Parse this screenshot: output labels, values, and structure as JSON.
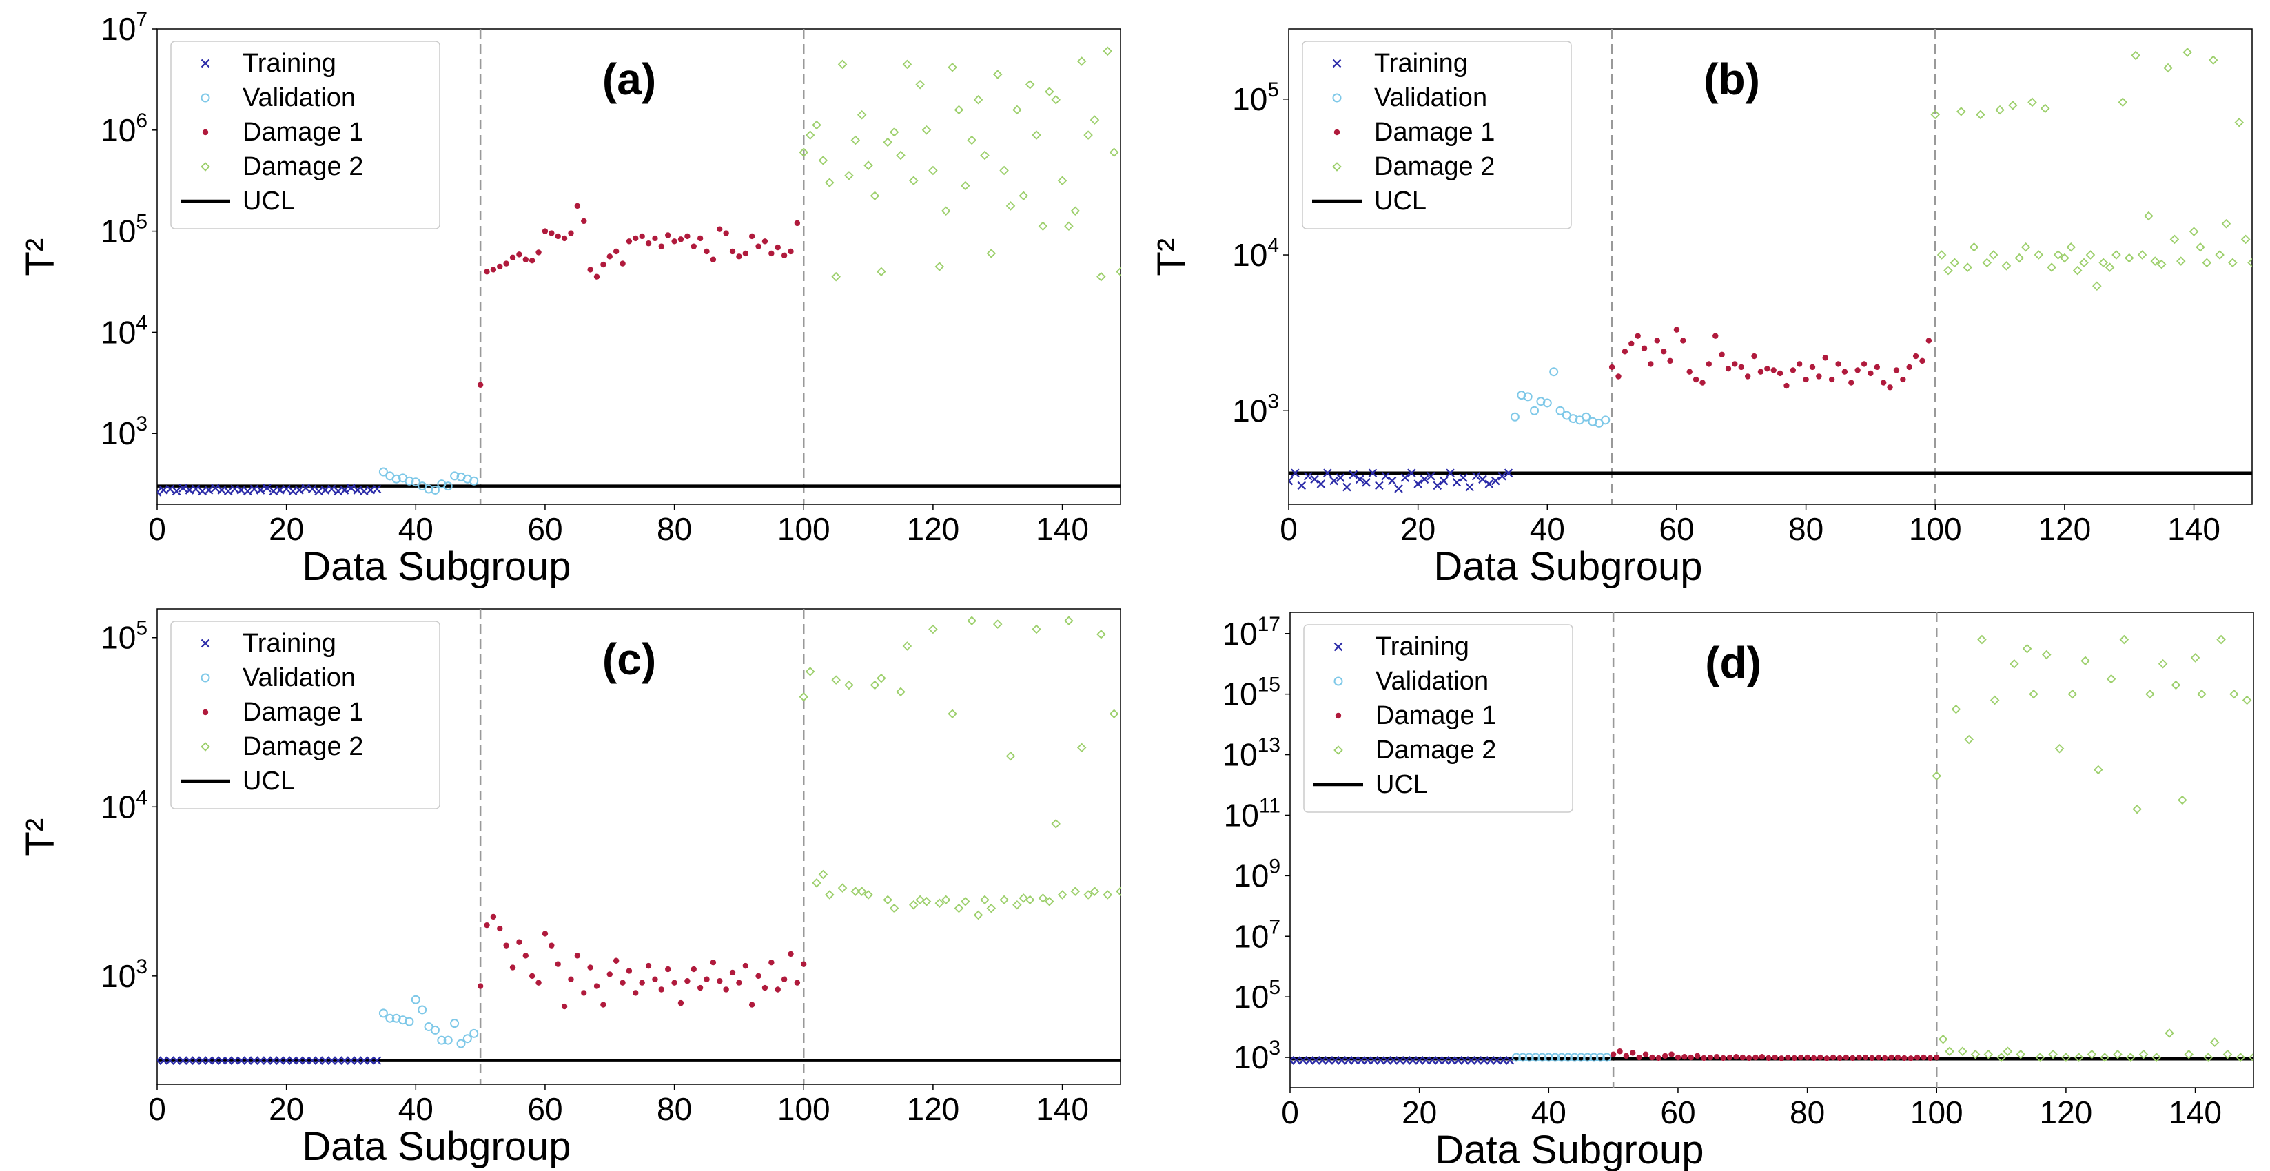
{
  "chart_data": [
    {
      "id": "a",
      "type": "scatter",
      "title": "(a)",
      "xlabel": "Data Subgroup",
      "ylabel": "T²",
      "xlim": [
        0,
        149
      ],
      "ylim_log10": [
        2.3,
        7.0
      ],
      "x_ticks": [
        0,
        20,
        40,
        60,
        80,
        100,
        120,
        140
      ],
      "y_ticks": [
        {
          "base": "10",
          "exp": "3",
          "value_log10": 3
        },
        {
          "base": "10",
          "exp": "4",
          "value_log10": 4
        },
        {
          "base": "10",
          "exp": "5",
          "value_log10": 5
        },
        {
          "base": "10",
          "exp": "6",
          "value_log10": 6
        },
        {
          "base": "10",
          "exp": "7",
          "value_log10": 7
        }
      ],
      "vlines": [
        50,
        100
      ],
      "ucl_log10": 2.48,
      "legend": [
        "Training",
        "Validation",
        "Damage 1",
        "Damage 2",
        "UCL"
      ],
      "series": [
        {
          "name": "Training",
          "marker": "x",
          "color": "#2b2ba8",
          "x_start": 0,
          "values_log10": [
            2.42,
            2.44,
            2.45,
            2.43,
            2.46,
            2.44,
            2.45,
            2.43,
            2.44,
            2.46,
            2.44,
            2.43,
            2.45,
            2.44,
            2.43,
            2.45,
            2.44,
            2.46,
            2.43,
            2.44,
            2.45,
            2.43,
            2.44,
            2.46,
            2.45,
            2.43,
            2.44,
            2.45,
            2.43,
            2.44,
            2.46,
            2.44,
            2.43,
            2.44,
            2.45
          ]
        },
        {
          "name": "Validation",
          "marker": "o",
          "color": "#7ec8e8",
          "x_start": 35,
          "values_log10": [
            2.62,
            2.58,
            2.55,
            2.56,
            2.53,
            2.52,
            2.48,
            2.45,
            2.44,
            2.5,
            2.48,
            2.58,
            2.57,
            2.55,
            2.53
          ]
        },
        {
          "name": "Damage 1",
          "marker": "dot",
          "color": "#b01a3c",
          "x_start": 50,
          "values_log10": [
            3.48,
            4.6,
            4.62,
            4.65,
            4.68,
            4.74,
            4.77,
            4.72,
            4.71,
            4.79,
            5.0,
            4.98,
            4.95,
            4.93,
            4.98,
            5.25,
            5.1,
            4.62,
            4.55,
            4.67,
            4.75,
            4.8,
            4.68,
            4.9,
            4.93,
            4.95,
            4.88,
            4.93,
            4.85,
            4.96,
            4.9,
            4.92,
            4.95,
            4.85,
            4.93,
            4.8,
            4.72,
            5.02,
            4.98,
            4.8,
            4.75,
            4.78,
            4.95,
            4.85,
            4.9,
            4.78,
            4.84,
            4.76,
            4.8,
            5.08
          ]
        },
        {
          "name": "Damage 2",
          "marker": "diamond",
          "color": "#9ccf6b",
          "x_start": 100,
          "values_log10": [
            5.78,
            5.95,
            6.05,
            5.7,
            5.48,
            4.55,
            6.65,
            5.55,
            5.9,
            6.15,
            5.65,
            5.35,
            4.6,
            5.88,
            5.98,
            5.75,
            6.65,
            5.5,
            6.45,
            6.0,
            5.6,
            4.65,
            5.2,
            6.62,
            6.2,
            5.45,
            5.9,
            6.3,
            5.75,
            4.78,
            6.55,
            5.6,
            5.25,
            6.2,
            5.35,
            6.45,
            5.95,
            5.05,
            6.38,
            6.3,
            5.5,
            5.05,
            5.2,
            6.68,
            5.95,
            6.1,
            4.55,
            6.78,
            5.78,
            4.6,
            6.85
          ]
        }
      ]
    },
    {
      "id": "b",
      "type": "scatter",
      "title": "(b)",
      "xlabel": "Data Subgroup",
      "ylabel": "T²",
      "xlim": [
        0,
        149
      ],
      "ylim_log10": [
        2.4,
        5.45
      ],
      "x_ticks": [
        0,
        20,
        40,
        60,
        80,
        100,
        120,
        140
      ],
      "y_ticks": [
        {
          "base": "10",
          "exp": "3",
          "value_log10": 3
        },
        {
          "base": "10",
          "exp": "4",
          "value_log10": 4
        },
        {
          "base": "10",
          "exp": "5",
          "value_log10": 5
        }
      ],
      "vlines": [
        50,
        100
      ],
      "ucl_log10": 2.6,
      "legend": [
        "Training",
        "Validation",
        "Damage 1",
        "Damage 2",
        "UCL"
      ],
      "series": [
        {
          "name": "Training",
          "marker": "x",
          "color": "#2b2ba8",
          "x_start": 0,
          "values_log10": [
            2.55,
            2.6,
            2.52,
            2.58,
            2.56,
            2.53,
            2.6,
            2.55,
            2.57,
            2.51,
            2.59,
            2.56,
            2.54,
            2.6,
            2.52,
            2.58,
            2.55,
            2.5,
            2.57,
            2.6,
            2.53,
            2.56,
            2.58,
            2.52,
            2.55,
            2.6,
            2.54,
            2.57,
            2.51,
            2.58,
            2.56,
            2.53,
            2.55,
            2.58,
            2.6
          ]
        },
        {
          "name": "Validation",
          "marker": "o",
          "color": "#7ec8e8",
          "x_start": 35,
          "values_log10": [
            2.96,
            3.1,
            3.09,
            3.0,
            3.06,
            3.05,
            3.25,
            3.0,
            2.97,
            2.95,
            2.94,
            2.96,
            2.93,
            2.92,
            2.94
          ]
        },
        {
          "name": "Damage 1",
          "marker": "dot",
          "color": "#b01a3c",
          "x_start": 50,
          "values_log10": [
            3.28,
            3.22,
            3.38,
            3.43,
            3.48,
            3.4,
            3.3,
            3.45,
            3.38,
            3.32,
            3.52,
            3.45,
            3.25,
            3.2,
            3.18,
            3.3,
            3.48,
            3.36,
            3.27,
            3.3,
            3.28,
            3.22,
            3.35,
            3.25,
            3.27,
            3.26,
            3.24,
            3.16,
            3.26,
            3.3,
            3.2,
            3.28,
            3.22,
            3.34,
            3.2,
            3.3,
            3.25,
            3.18,
            3.26,
            3.3,
            3.24,
            3.28,
            3.18,
            3.15,
            3.26,
            3.2,
            3.28,
            3.35,
            3.32,
            3.45
          ]
        },
        {
          "name": "Damage 2",
          "marker": "diamond",
          "color": "#9ccf6b",
          "x_start": 100,
          "values_log10": [
            4.9,
            4.0,
            3.9,
            3.95,
            4.92,
            3.92,
            4.05,
            4.9,
            3.95,
            4.0,
            4.93,
            3.93,
            4.96,
            3.98,
            4.05,
            4.98,
            4.0,
            4.94,
            3.92,
            4.0,
            3.98,
            4.05,
            3.9,
            3.95,
            4.0,
            3.8,
            3.95,
            3.92,
            4.0,
            4.98,
            3.98,
            5.28,
            4.0,
            4.25,
            3.96,
            3.94,
            5.2,
            4.1,
            3.96,
            5.3,
            4.15,
            4.05,
            3.95,
            5.25,
            4.0,
            4.2,
            3.95,
            4.85,
            4.1,
            3.95,
            5.1
          ]
        }
      ]
    },
    {
      "id": "c",
      "type": "scatter",
      "title": "(c)",
      "xlabel": "Data Subgroup",
      "ylabel": "T²",
      "xlim": [
        0,
        149
      ],
      "ylim_log10": [
        2.36,
        5.17
      ],
      "x_ticks": [
        0,
        20,
        40,
        60,
        80,
        100,
        120,
        140
      ],
      "y_ticks": [
        {
          "base": "10",
          "exp": "3",
          "value_log10": 3
        },
        {
          "base": "10",
          "exp": "4",
          "value_log10": 4
        },
        {
          "base": "10",
          "exp": "5",
          "value_log10": 5
        }
      ],
      "vlines": [
        50,
        100
      ],
      "ucl_log10": 2.5,
      "legend": [
        "Training",
        "Validation",
        "Damage 1",
        "Damage 2",
        "UCL"
      ],
      "series": [
        {
          "name": "Training",
          "marker": "x",
          "color": "#2b2ba8",
          "x_start": 0,
          "values_log10": [
            2.5,
            2.5,
            2.5,
            2.5,
            2.5,
            2.5,
            2.5,
            2.5,
            2.5,
            2.5,
            2.5,
            2.5,
            2.5,
            2.5,
            2.5,
            2.5,
            2.5,
            2.5,
            2.5,
            2.5,
            2.5,
            2.5,
            2.5,
            2.5,
            2.5,
            2.5,
            2.5,
            2.5,
            2.5,
            2.5,
            2.5,
            2.5,
            2.5,
            2.5,
            2.5
          ]
        },
        {
          "name": "Validation",
          "marker": "o",
          "color": "#7ec8e8",
          "x_start": 35,
          "values_log10": [
            2.78,
            2.75,
            2.75,
            2.74,
            2.73,
            2.86,
            2.8,
            2.7,
            2.68,
            2.62,
            2.62,
            2.72,
            2.6,
            2.63,
            2.66
          ]
        },
        {
          "name": "Damage 1",
          "marker": "dot",
          "color": "#b01a3c",
          "x_start": 50,
          "values_log10": [
            2.94,
            3.3,
            3.35,
            3.28,
            3.18,
            3.05,
            3.2,
            3.12,
            3.0,
            2.96,
            3.25,
            3.18,
            3.07,
            2.82,
            2.98,
            3.12,
            2.9,
            3.05,
            2.94,
            2.83,
            3.01,
            3.09,
            2.96,
            3.03,
            2.9,
            2.96,
            3.06,
            2.98,
            2.92,
            3.04,
            2.96,
            2.84,
            2.97,
            3.04,
            2.93,
            2.98,
            3.08,
            2.97,
            2.92,
            3.02,
            2.96,
            3.06,
            2.83,
            3.0,
            2.93,
            3.08,
            2.92,
            2.98,
            3.13,
            2.96,
            3.07
          ]
        },
        {
          "name": "Damage 2",
          "marker": "diamond",
          "color": "#9ccf6b",
          "x_start": 100,
          "values_log10": [
            4.65,
            4.8,
            3.55,
            3.6,
            3.48,
            4.75,
            3.52,
            4.72,
            3.5,
            3.5,
            3.48,
            4.72,
            4.76,
            3.45,
            3.4,
            4.68,
            4.95,
            3.42,
            3.45,
            3.44,
            5.05,
            3.43,
            3.45,
            4.55,
            3.4,
            3.44,
            5.1,
            3.36,
            3.45,
            3.4,
            5.08,
            3.45,
            4.3,
            3.42,
            3.46,
            3.45,
            5.05,
            3.46,
            3.44,
            3.9,
            3.48,
            5.1,
            3.5,
            4.35,
            3.48,
            3.5,
            5.02,
            3.48,
            4.55,
            3.5,
            3.6
          ]
        }
      ]
    },
    {
      "id": "d",
      "type": "scatter",
      "title": "(d)",
      "xlabel": "Data Subgroup",
      "ylabel": "",
      "xlim": [
        0,
        149
      ],
      "ylim_log10": [
        2.0,
        17.7
      ],
      "x_ticks": [
        0,
        20,
        40,
        60,
        80,
        100,
        120,
        140
      ],
      "y_ticks": [
        {
          "base": "10",
          "exp": "3",
          "value_log10": 3
        },
        {
          "base": "10",
          "exp": "5",
          "value_log10": 5
        },
        {
          "base": "10",
          "exp": "7",
          "value_log10": 7
        },
        {
          "base": "10",
          "exp": "9",
          "value_log10": 9
        },
        {
          "base": "10",
          "exp": "11",
          "value_log10": 11
        },
        {
          "base": "10",
          "exp": "13",
          "value_log10": 13
        },
        {
          "base": "10",
          "exp": "15",
          "value_log10": 15
        },
        {
          "base": "10",
          "exp": "17",
          "value_log10": 17
        }
      ],
      "vlines": [
        50,
        100
      ],
      "ucl_log10": 2.95,
      "legend": [
        "Training",
        "Validation",
        "Damage 1",
        "Damage 2",
        "UCL"
      ],
      "series": [
        {
          "name": "Training",
          "marker": "x",
          "color": "#2b2ba8",
          "x_start": 0,
          "values_log10": [
            2.9,
            2.9,
            2.9,
            2.9,
            2.9,
            2.9,
            2.9,
            2.9,
            2.9,
            2.9,
            2.9,
            2.9,
            2.9,
            2.9,
            2.9,
            2.9,
            2.9,
            2.9,
            2.9,
            2.9,
            2.9,
            2.9,
            2.9,
            2.9,
            2.9,
            2.9,
            2.9,
            2.9,
            2.9,
            2.9,
            2.9,
            2.9,
            2.9,
            2.9,
            2.9
          ]
        },
        {
          "name": "Validation",
          "marker": "o",
          "color": "#7ec8e8",
          "x_start": 35,
          "values_log10": [
            3.0,
            3.0,
            3.0,
            3.0,
            3.0,
            3.0,
            3.0,
            3.0,
            3.0,
            3.0,
            3.0,
            3.0,
            3.0,
            3.0,
            3.0
          ]
        },
        {
          "name": "Damage 1",
          "marker": "dot",
          "color": "#b01a3c",
          "x_start": 50,
          "values_log10": [
            3.1,
            3.2,
            3.05,
            3.15,
            3.0,
            3.1,
            3.0,
            2.98,
            3.05,
            3.1,
            3.0,
            3.02,
            3.0,
            3.05,
            2.98,
            3.0,
            3.02,
            2.98,
            3.0,
            3.02,
            3.0,
            2.98,
            3.0,
            3.02,
            2.98,
            3.0,
            2.97,
            3.0,
            2.98,
            3.0,
            3.0,
            2.98,
            3.0,
            2.97,
            3.0,
            2.98,
            3.0,
            2.98,
            3.0,
            3.0,
            2.98,
            3.0,
            2.98,
            3.0,
            3.0,
            2.98,
            2.97,
            3.0,
            3.0,
            2.98,
            3.0
          ]
        },
        {
          "name": "Damage 2",
          "marker": "diamond",
          "color": "#9ccf6b",
          "x_start": 100,
          "values_log10": [
            12.3,
            3.6,
            3.2,
            14.5,
            3.2,
            13.5,
            3.1,
            16.8,
            3.1,
            14.8,
            3.0,
            3.2,
            16.0,
            3.1,
            16.5,
            15.0,
            3.0,
            16.3,
            3.1,
            13.2,
            3.0,
            15.0,
            3.0,
            16.1,
            3.1,
            12.5,
            3.0,
            15.5,
            3.1,
            16.8,
            3.0,
            11.2,
            3.1,
            15.0,
            3.0,
            16.0,
            3.8,
            15.3,
            11.5,
            3.1,
            16.2,
            15.0,
            3.0,
            3.5,
            16.8,
            3.1,
            15.0,
            3.0,
            14.8,
            3.0,
            17.0
          ]
        }
      ]
    }
  ]
}
